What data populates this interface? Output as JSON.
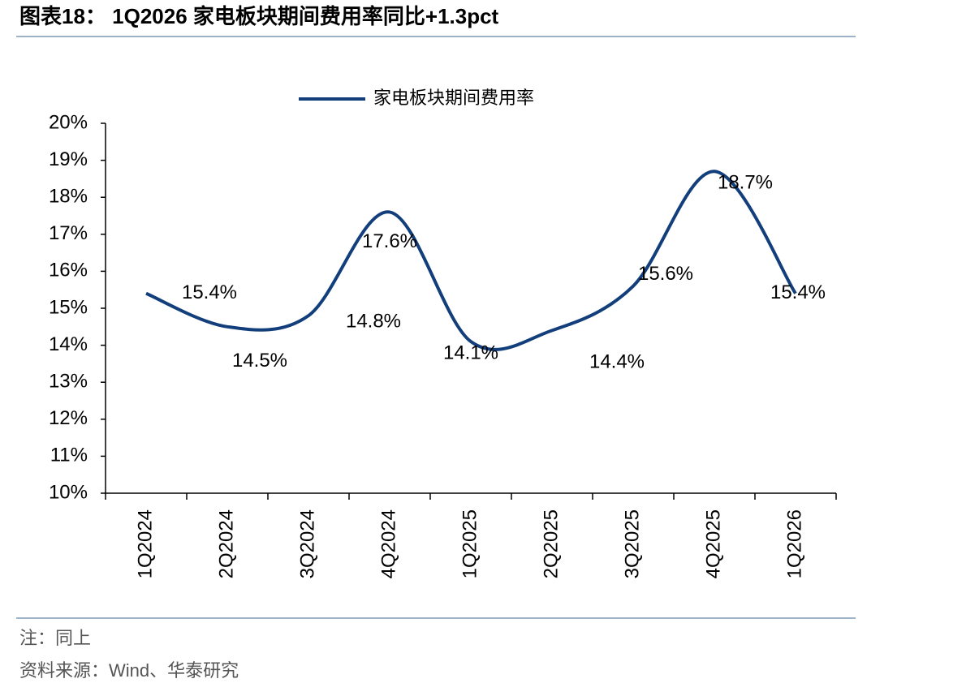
{
  "chart_data": {
    "type": "line",
    "title": "图表18：  1Q2026 家电板块期间费用率同比+1.3pct",
    "categories": [
      "1Q2024",
      "2Q2024",
      "3Q2024",
      "4Q2024",
      "1Q2025",
      "2Q2025",
      "3Q2025",
      "4Q2025",
      "1Q2026"
    ],
    "series": [
      {
        "name": "家电板块期间费用率",
        "color": "#123f7b",
        "values": [
          15.4,
          14.5,
          14.8,
          17.6,
          14.1,
          14.4,
          15.6,
          18.7,
          15.4
        ],
        "value_labels": [
          "15.4%",
          "14.5%",
          "14.8%",
          "17.6%",
          "14.1%",
          "14.4%",
          "15.6%",
          "18.7%",
          "15.4%"
        ]
      }
    ],
    "ylim": [
      10,
      20
    ],
    "yticks": [
      {
        "value": 10,
        "label": "10%"
      },
      {
        "value": 11,
        "label": "11%"
      },
      {
        "value": 12,
        "label": "12%"
      },
      {
        "value": 13,
        "label": "13%"
      },
      {
        "value": 14,
        "label": "14%"
      },
      {
        "value": 15,
        "label": "15%"
      },
      {
        "value": 16,
        "label": "16%"
      },
      {
        "value": 17,
        "label": "17%"
      },
      {
        "value": 18,
        "label": "18%"
      },
      {
        "value": 19,
        "label": "19%"
      },
      {
        "value": 20,
        "label": "20%"
      }
    ],
    "legend": "top",
    "notes": [
      "注：同上",
      "资料来源：Wind、华泰研究"
    ]
  }
}
